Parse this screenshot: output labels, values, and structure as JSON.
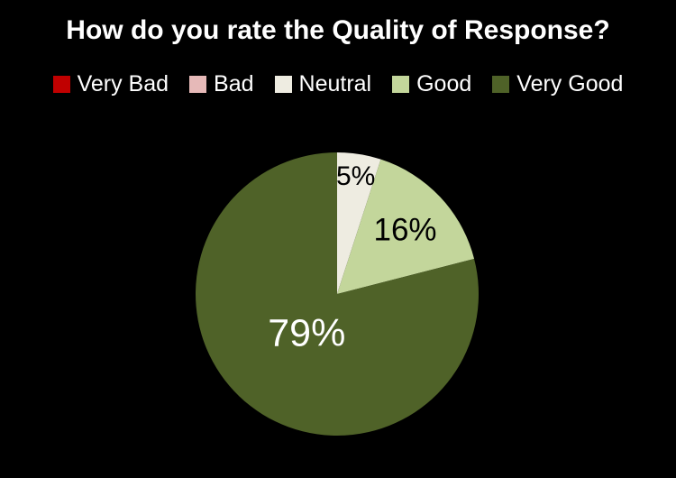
{
  "title": "How do you rate the Quality of Response?",
  "legend": {
    "items": [
      {
        "label": "Very Bad",
        "color": "#C00000"
      },
      {
        "label": "Bad",
        "color": "#E6B9B8"
      },
      {
        "label": "Neutral",
        "color": "#EEECE1"
      },
      {
        "label": "Good",
        "color": "#C3D69B"
      },
      {
        "label": "Very Good",
        "color": "#4F6228"
      }
    ]
  },
  "chart_data": {
    "type": "pie",
    "title": "How do you rate the Quality of Response?",
    "categories": [
      "Very Bad",
      "Bad",
      "Neutral",
      "Good",
      "Very Good"
    ],
    "values": [
      0,
      0,
      5,
      16,
      79
    ],
    "unit": "percent",
    "colors": [
      "#C00000",
      "#E6B9B8",
      "#EEECE1",
      "#C3D69B",
      "#4F6228"
    ],
    "data_labels": [
      "",
      "",
      "5%",
      "16%",
      "79%"
    ],
    "start_angle_deg": 0,
    "direction": "clockwise",
    "legend_position": "top",
    "background": "#000000",
    "text_color": "#FFFFFF",
    "label_layout": [
      null,
      null,
      {
        "radius_frac": 0.84,
        "font_size": 30,
        "color": "#000000"
      },
      {
        "radius_frac": 0.66,
        "font_size": 35,
        "color": "#000000"
      },
      {
        "radius_frac": 0.35,
        "font_size": 43,
        "color": "#FFFFFF"
      }
    ]
  }
}
